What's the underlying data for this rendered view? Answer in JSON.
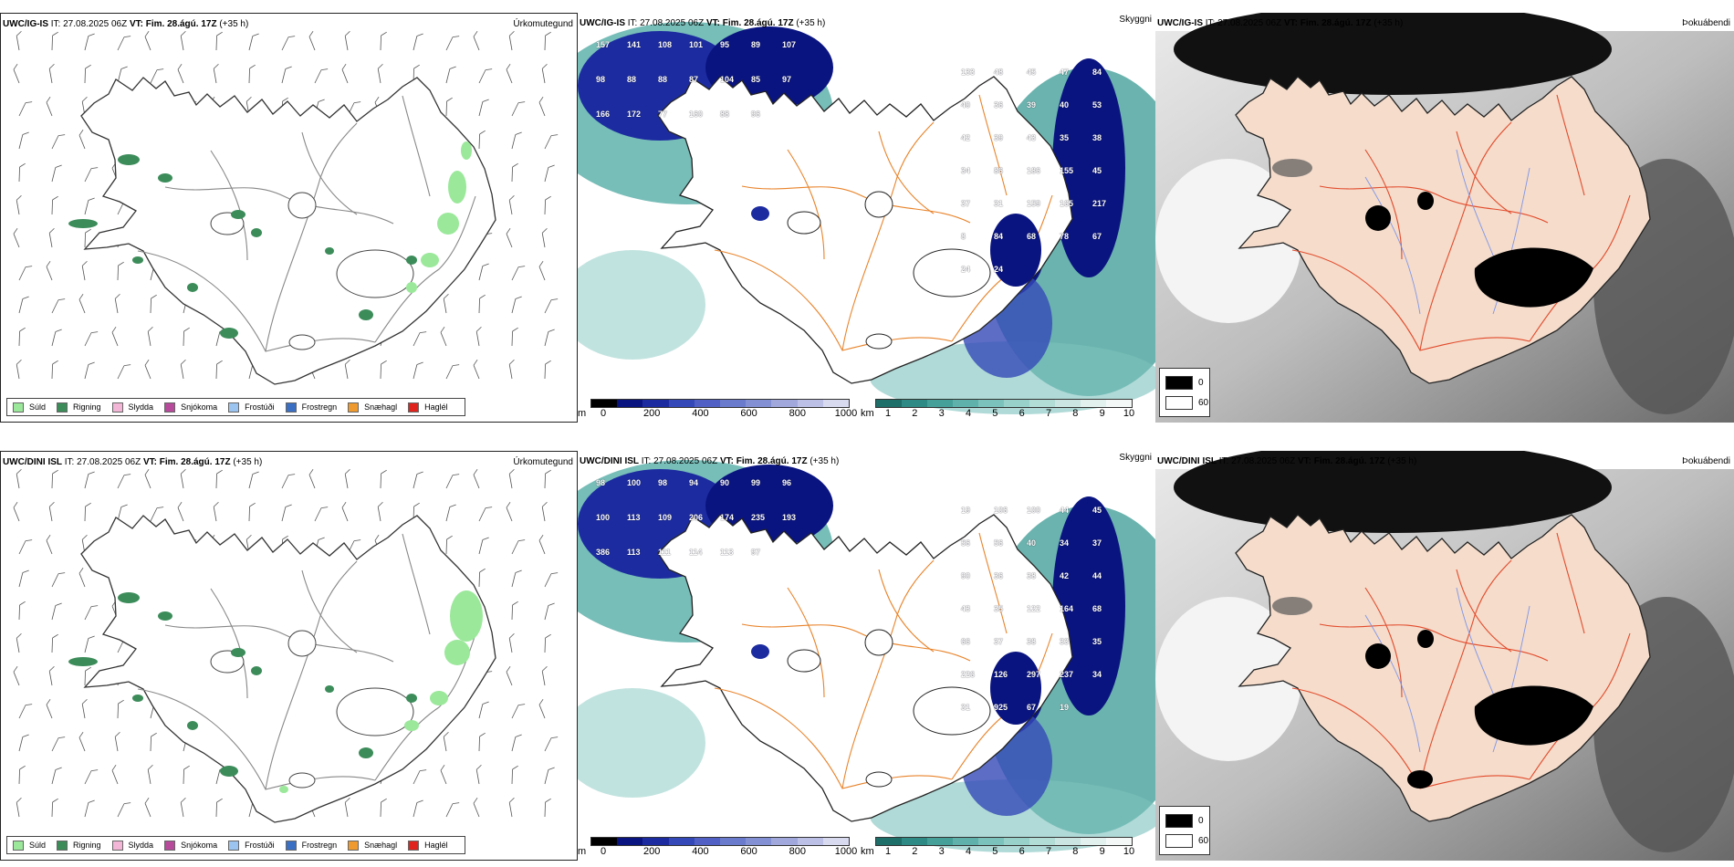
{
  "rows": [
    {
      "model": "UWC/IG-IS",
      "precip": {
        "title": "Úrkomutegund"
      },
      "cloud": {
        "title": "Skyggni",
        "labels": [
          "157",
          "141",
          "108",
          "101",
          "95",
          "89",
          "107",
          "98",
          "88",
          "88",
          "87",
          "104",
          "85",
          "97",
          "166",
          "172",
          "77",
          "160",
          "88",
          "96",
          "133",
          "48",
          "45",
          "47",
          "84",
          "40",
          "36",
          "39",
          "40",
          "53",
          "42",
          "39",
          "43",
          "35",
          "38",
          "34",
          "86",
          "186",
          "155",
          "45",
          "37",
          "31",
          "159",
          "165",
          "217",
          "8",
          "84",
          "68",
          "78",
          "67",
          "24",
          "24"
        ]
      },
      "vis": {
        "title": "Þokuábendi"
      }
    },
    {
      "model": "UWC/DINI ISL",
      "precip": {
        "title": "Úrkomutegund"
      },
      "cloud": {
        "title": "Skyggni",
        "labels": [
          "98",
          "100",
          "98",
          "94",
          "90",
          "99",
          "96",
          "100",
          "113",
          "109",
          "206",
          "174",
          "235",
          "193",
          "386",
          "113",
          "111",
          "114",
          "113",
          "97",
          "19",
          "106",
          "100",
          "44",
          "45",
          "56",
          "56",
          "40",
          "34",
          "37",
          "90",
          "36",
          "38",
          "42",
          "44",
          "43",
          "35",
          "122",
          "164",
          "68",
          "66",
          "37",
          "38",
          "33",
          "35",
          "226",
          "126",
          "297",
          "237",
          "34",
          "31",
          "925",
          "67",
          "19"
        ]
      },
      "vis": {
        "title": "Þokuábendi"
      }
    }
  ],
  "header": {
    "it_label": "IT:",
    "it_value": "27.08.2025 06Z",
    "vt_label": "VT:",
    "vt_value": "Fim. 28.ágú. 17Z",
    "lead": "(+35 h)"
  },
  "precip_legend": [
    {
      "label": "Súld",
      "color": "#9be89b"
    },
    {
      "label": "Rigning",
      "color": "#3c8c5a"
    },
    {
      "label": "Slydda",
      "color": "#f3b6d6"
    },
    {
      "label": "Snjókoma",
      "color": "#b74a9b"
    },
    {
      "label": "Frostúði",
      "color": "#9bc4f0"
    },
    {
      "label": "Frostregn",
      "color": "#3b6fc4"
    },
    {
      "label": "Snæhagl",
      "color": "#ef9a2e"
    },
    {
      "label": "Haglél",
      "color": "#e0231c"
    }
  ],
  "cloud_bar": {
    "unit": "m",
    "ticks": [
      "0",
      "200",
      "400",
      "600",
      "800",
      "1000"
    ],
    "colors": [
      "#000000",
      "#0a1480",
      "#1c2ca0",
      "#3548b8",
      "#5060c4",
      "#6a7acc",
      "#8490d4",
      "#a0a8dc",
      "#bcc0e6",
      "#d8daf0"
    ]
  },
  "vis_bar": {
    "unit": "km",
    "ticks": [
      "1",
      "2",
      "3",
      "4",
      "5",
      "6",
      "7",
      "8",
      "9",
      "10"
    ],
    "colors": [
      "#1e6e6a",
      "#2e8a84",
      "#46a09a",
      "#5fb2ac",
      "#7cc2bc",
      "#98d0ca",
      "#b2dcd6",
      "#cbe6e2",
      "#e2f0ee",
      "#f4f9f8"
    ]
  },
  "vis_legend": [
    {
      "label": "0",
      "color": "#000000"
    },
    {
      "label": "60",
      "color": "#ffffff"
    }
  ]
}
